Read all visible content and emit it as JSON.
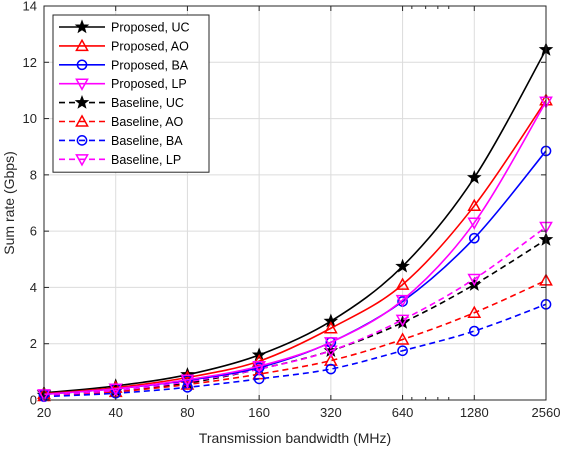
{
  "chart_data": {
    "type": "line",
    "title": "",
    "xlabel": "Transmission bandwidth (MHz)",
    "ylabel": "Sum rate (Gbps)",
    "x_scale": "log2",
    "x": [
      20,
      40,
      80,
      160,
      320,
      640,
      1280,
      2560
    ],
    "x_tick_labels": [
      "20",
      "40",
      "80",
      "160",
      "320",
      "640",
      "1280",
      "2560"
    ],
    "minor_ticks_between": [
      "640",
      "1280",
      "2560"
    ],
    "ylim": [
      0,
      14
    ],
    "y_ticks": [
      0,
      2,
      4,
      6,
      8,
      10,
      12,
      14
    ],
    "grid": true,
    "legend_position": "top-left",
    "series": [
      {
        "name": "Proposed, UC",
        "color": "#000000",
        "marker": "star",
        "dash": "solid",
        "values": [
          0.25,
          0.5,
          0.9,
          1.6,
          2.8,
          4.75,
          7.9,
          12.45
        ]
      },
      {
        "name": "Proposed, AO",
        "color": "#ff0000",
        "marker": "triangle-up",
        "dash": "solid",
        "values": [
          0.22,
          0.44,
          0.8,
          1.38,
          2.55,
          4.1,
          6.9,
          10.65
        ]
      },
      {
        "name": "Proposed, BA",
        "color": "#0000ff",
        "marker": "circle",
        "dash": "solid",
        "values": [
          0.2,
          0.4,
          0.7,
          1.15,
          2.05,
          3.5,
          5.75,
          8.85
        ]
      },
      {
        "name": "Proposed, LP",
        "color": "#ff00ff",
        "marker": "triangle-down",
        "dash": "solid",
        "values": [
          0.2,
          0.4,
          0.72,
          1.2,
          2.05,
          3.55,
          6.3,
          10.6
        ]
      },
      {
        "name": "Baseline, UC",
        "color": "#000000",
        "marker": "star",
        "dash": "dashed",
        "values": [
          0.17,
          0.33,
          0.6,
          1.1,
          1.75,
          2.75,
          4.1,
          5.7
        ]
      },
      {
        "name": "Baseline, AO",
        "color": "#ff0000",
        "marker": "triangle-up",
        "dash": "dashed",
        "values": [
          0.14,
          0.29,
          0.55,
          0.92,
          1.4,
          2.15,
          3.1,
          4.25
        ]
      },
      {
        "name": "Baseline, BA",
        "color": "#0000ff",
        "marker": "circle",
        "dash": "dashed",
        "values": [
          0.12,
          0.24,
          0.45,
          0.75,
          1.1,
          1.75,
          2.45,
          3.4
        ]
      },
      {
        "name": "Baseline, LP",
        "color": "#ff00ff",
        "marker": "triangle-down",
        "dash": "dashed",
        "values": [
          0.17,
          0.34,
          0.65,
          1.1,
          1.75,
          2.85,
          4.3,
          6.15
        ]
      }
    ]
  }
}
